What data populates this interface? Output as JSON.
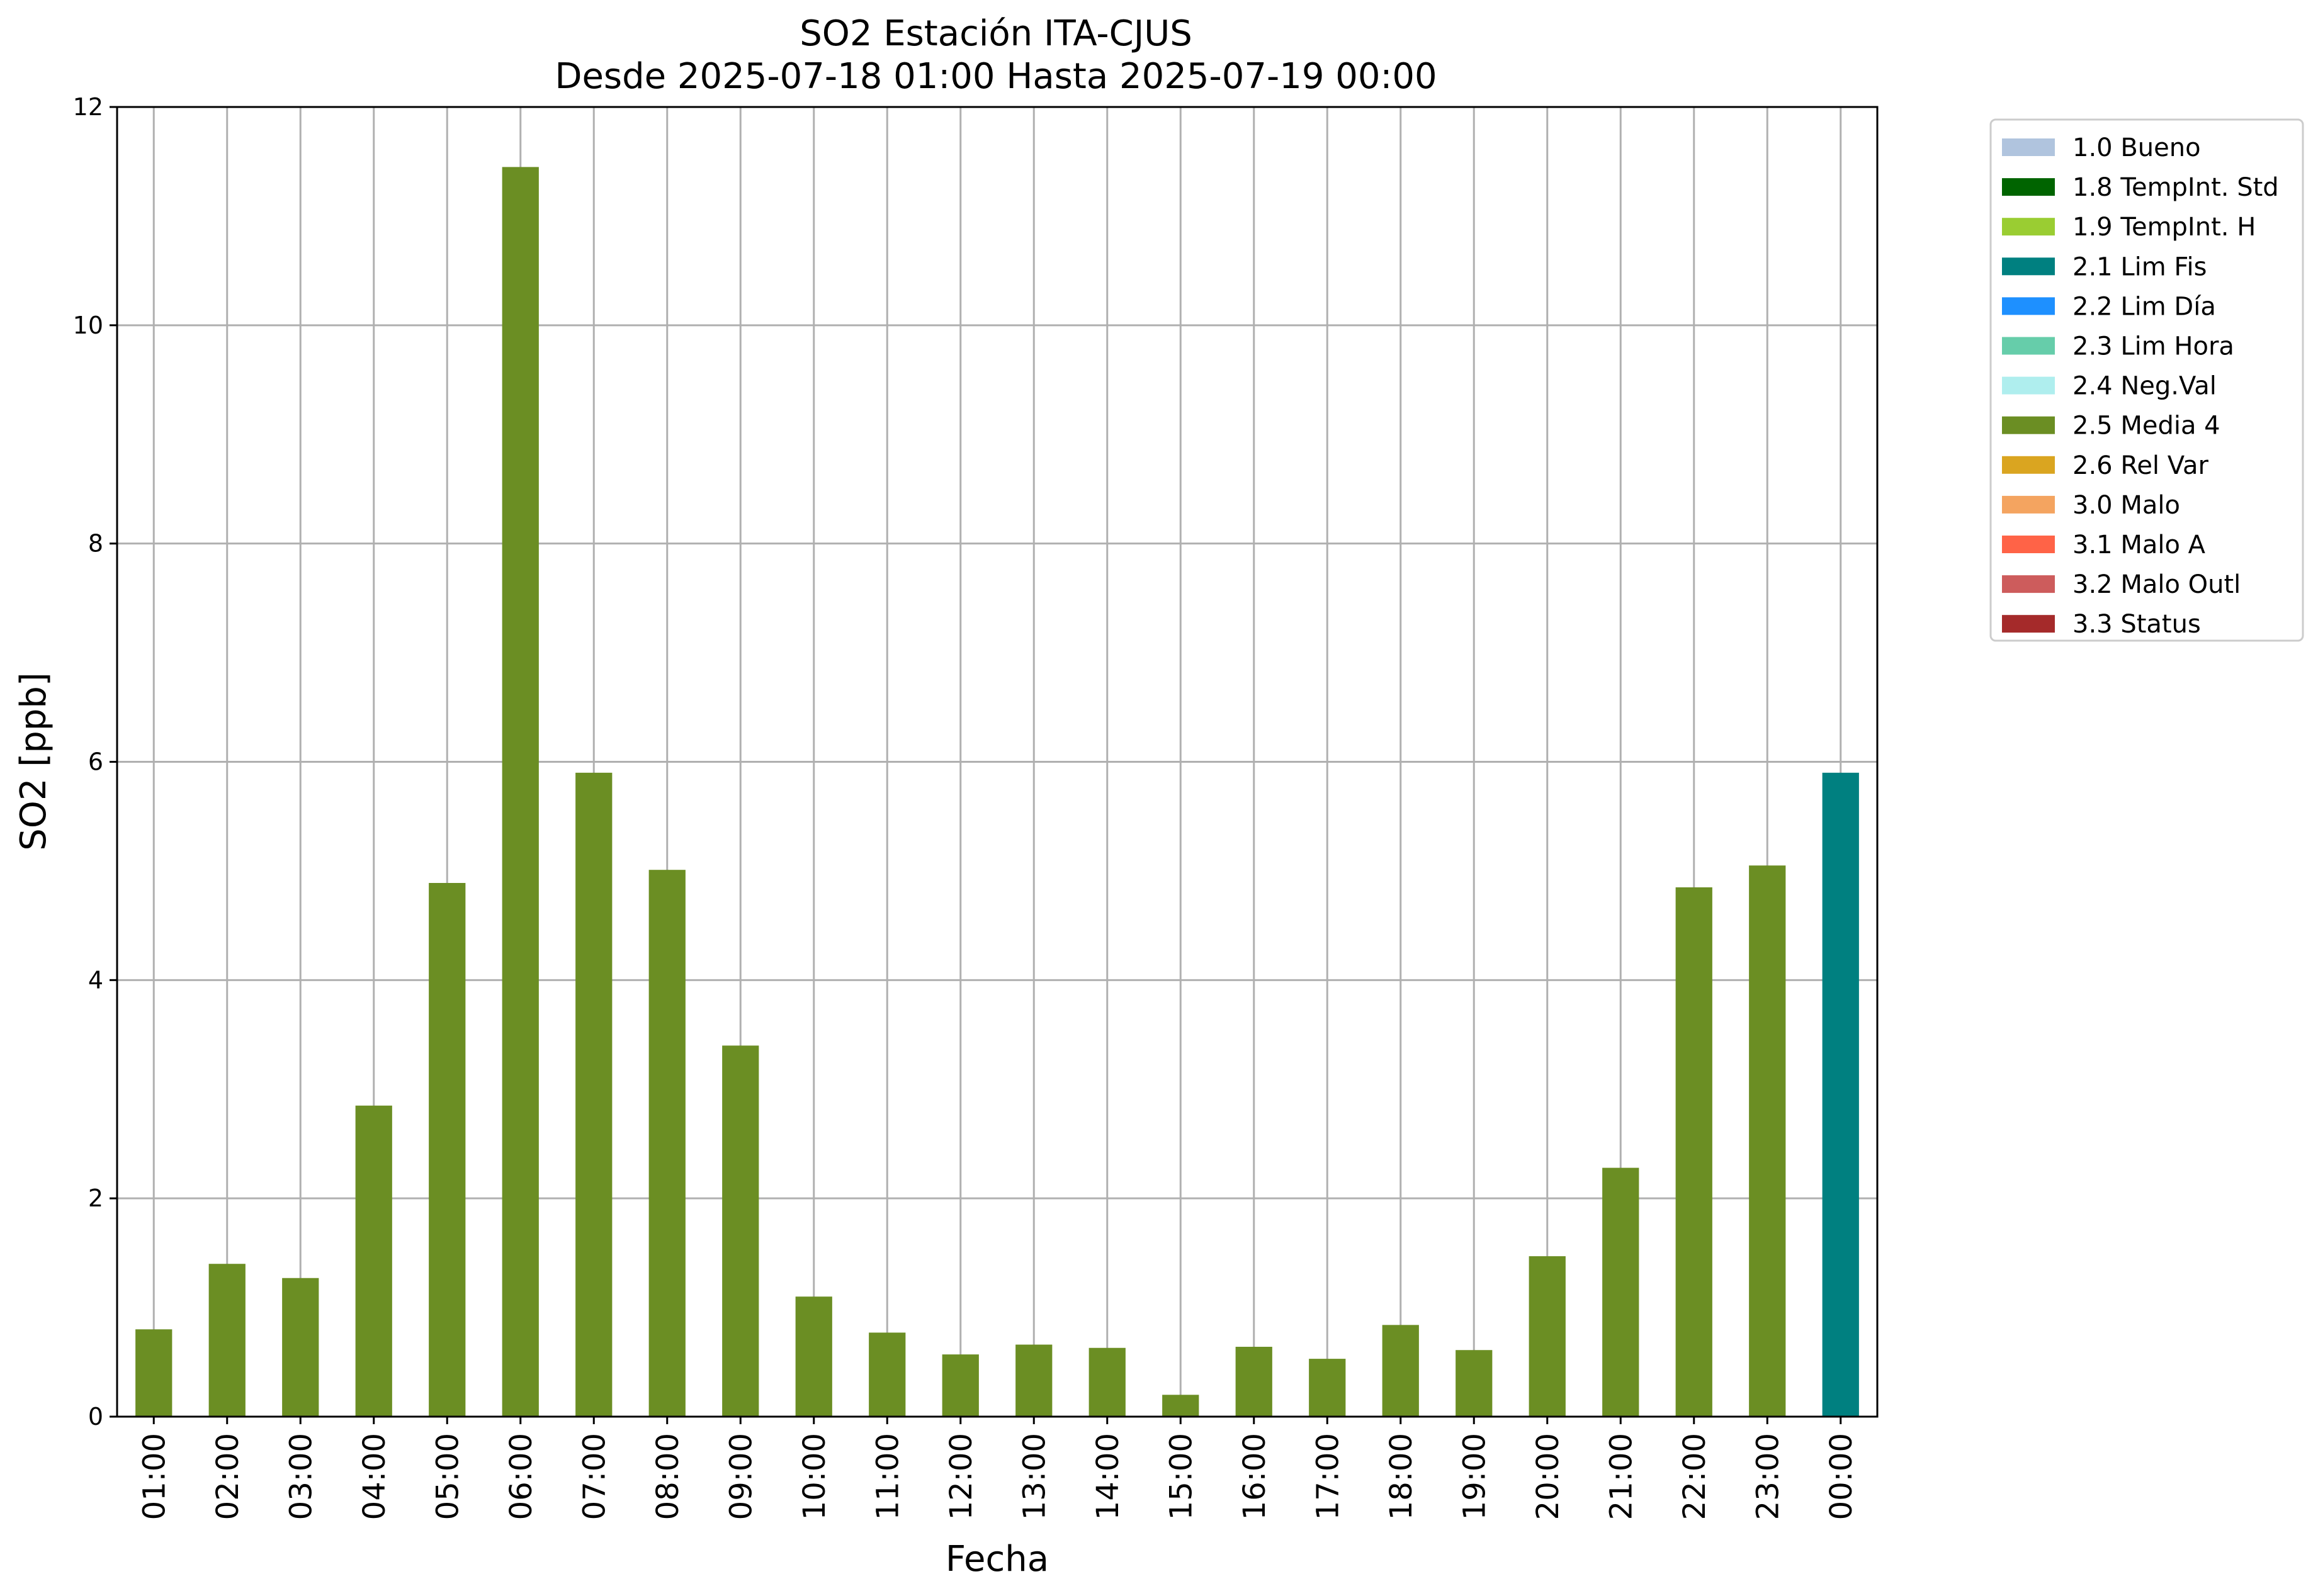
{
  "chart_data": {
    "type": "bar",
    "title": "SO2 Estación ITA-CJUS",
    "subtitle": "Desde 2025-07-18 01:00 Hasta 2025-07-19 00:00",
    "xlabel": "Fecha",
    "ylabel": "SO2 [ppb]",
    "ylim": [
      0,
      12
    ],
    "yticks": [
      0,
      2,
      4,
      6,
      8,
      10,
      12
    ],
    "grid": true,
    "legend_position": "outside-right",
    "categories": [
      "01:00",
      "02:00",
      "03:00",
      "04:00",
      "05:00",
      "06:00",
      "07:00",
      "08:00",
      "09:00",
      "10:00",
      "11:00",
      "12:00",
      "13:00",
      "14:00",
      "15:00",
      "16:00",
      "17:00",
      "18:00",
      "19:00",
      "20:00",
      "21:00",
      "22:00",
      "23:00",
      "00:00"
    ],
    "values": [
      0.8,
      1.4,
      1.27,
      2.85,
      4.89,
      11.45,
      5.9,
      5.01,
      3.4,
      1.1,
      0.77,
      0.57,
      0.66,
      0.63,
      0.2,
      0.64,
      0.53,
      0.84,
      0.61,
      1.47,
      2.28,
      4.85,
      5.05,
      5.9
    ],
    "flags": [
      "2.5 Media 4",
      "2.5 Media 4",
      "2.5 Media 4",
      "2.5 Media 4",
      "2.5 Media 4",
      "2.5 Media 4",
      "2.5 Media 4",
      "2.5 Media 4",
      "2.5 Media 4",
      "2.5 Media 4",
      "2.5 Media 4",
      "2.5 Media 4",
      "2.5 Media 4",
      "2.5 Media 4",
      "2.5 Media 4",
      "2.5 Media 4",
      "2.5 Media 4",
      "2.5 Media 4",
      "2.5 Media 4",
      "2.5 Media 4",
      "2.5 Media 4",
      "2.5 Media 4",
      "2.5 Media 4",
      "2.1 Lim Fis"
    ],
    "legend": [
      {
        "label": "1.0 Bueno",
        "color": "#b0c4de"
      },
      {
        "label": "1.8 TempInt. Std",
        "color": "#006400"
      },
      {
        "label": "1.9 TempInt. H",
        "color": "#9acd32"
      },
      {
        "label": "2.1 Lim Fis",
        "color": "#008080"
      },
      {
        "label": "2.2 Lim Día",
        "color": "#1e90ff"
      },
      {
        "label": "2.3 Lim Hora",
        "color": "#66cdaa"
      },
      {
        "label": "2.4 Neg.Val",
        "color": "#afeeee"
      },
      {
        "label": "2.5 Media 4",
        "color": "#6b8e23"
      },
      {
        "label": "2.6 Rel Var",
        "color": "#daa520"
      },
      {
        "label": "3.0 Malo",
        "color": "#f4a460"
      },
      {
        "label": "3.1 Malo A",
        "color": "#ff6347"
      },
      {
        "label": "3.2 Malo Outl",
        "color": "#cd5c5c"
      },
      {
        "label": "3.3 Status",
        "color": "#a52a2a"
      }
    ]
  }
}
